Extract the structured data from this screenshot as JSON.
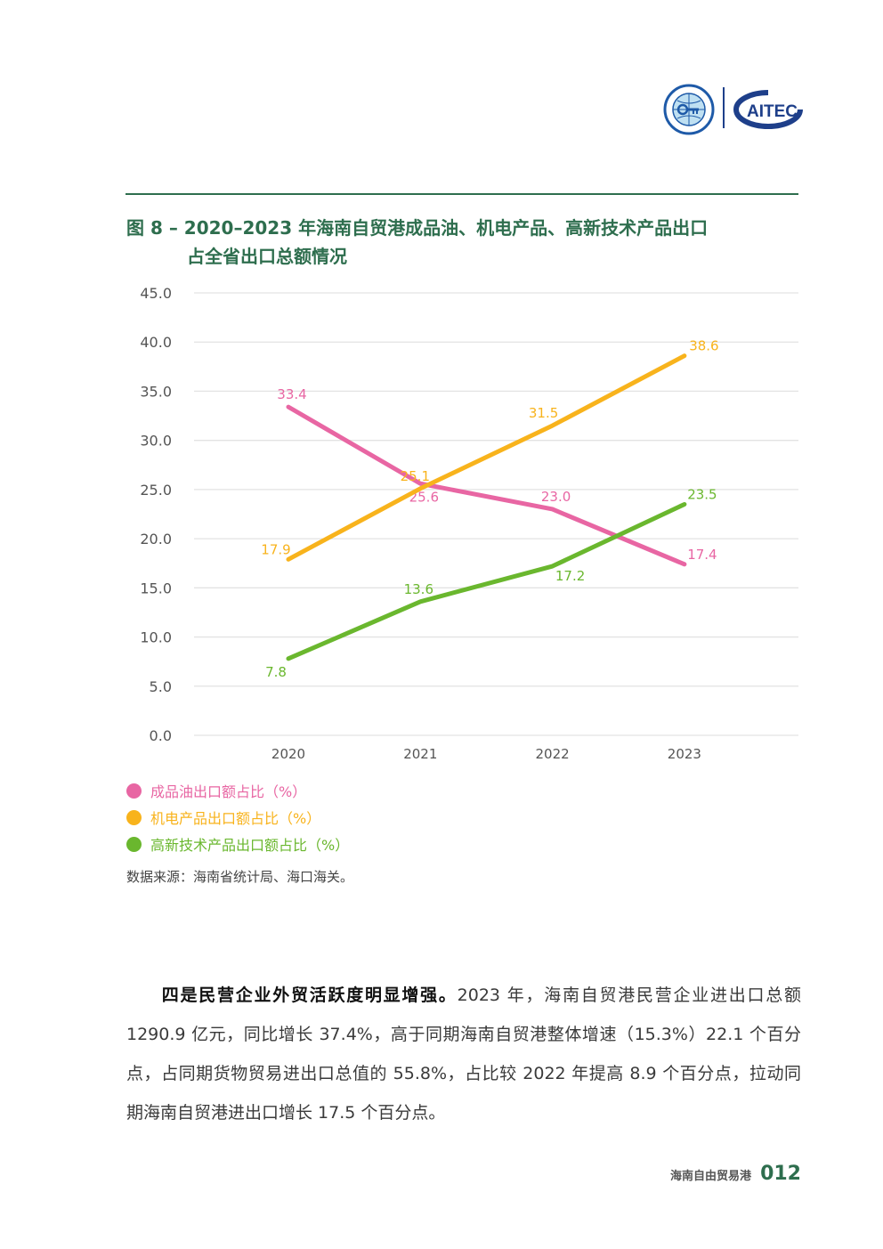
{
  "header": {
    "logos": [
      {
        "name": "china-tiff-think-tank-logo",
        "text": "CHINA TIFF THINK TANK"
      },
      {
        "name": "caitec-logo",
        "text": "CAITEC"
      }
    ]
  },
  "figure": {
    "title_line1": "图 8 – 2020–2023 年海南自贸港成品油、机电产品、高新技术产品出口",
    "title_line2": "占全省出口总额情况"
  },
  "chart_data": {
    "type": "line",
    "title": "2020–2023 年海南自贸港成品油、机电产品、高新技术产品出口占全省出口总额情况",
    "xlabel": "",
    "ylabel": "",
    "categories": [
      "2020",
      "2021",
      "2022",
      "2023"
    ],
    "ylim": [
      0,
      45
    ],
    "yticks": [
      "0.0",
      "5.0",
      "10.0",
      "15.0",
      "20.0",
      "25.0",
      "30.0",
      "35.0",
      "40.0",
      "45.0"
    ],
    "grid": true,
    "legend_position": "bottom-left",
    "series": [
      {
        "name": "成品油出口额占比（%）",
        "color": "#e866a3",
        "values": [
          33.4,
          25.6,
          23.0,
          17.4
        ]
      },
      {
        "name": "机电产品出口额占比（%）",
        "color": "#f8b31c",
        "values": [
          17.9,
          25.1,
          31.5,
          38.6
        ]
      },
      {
        "name": "高新技术产品出口额占比（%）",
        "color": "#6ab72e",
        "values": [
          7.8,
          13.6,
          17.2,
          23.5
        ]
      }
    ]
  },
  "source": "数据来源：海南省统计局、海口海关。",
  "paragraph": {
    "lead": "四是民营企业外贸活跃度明显增强。",
    "body": "2023 年，海南自贸港民营企业进出口总额 1290.9 亿元，同比增长 37.4%，高于同期海南自贸港整体增速（15.3%）22.1 个百分点，占同期货物贸易进出口总值的 55.8%，占比较 2022 年提高 8.9 个百分点，拉动同期海南自贸港进出口增长 17.5 个百分点。"
  },
  "footer": {
    "label": "海南自由贸易港",
    "page": "012"
  },
  "colors": {
    "accent": "#2e6e4e",
    "grid": "#e3e3e3",
    "axis_text": "#555555"
  }
}
